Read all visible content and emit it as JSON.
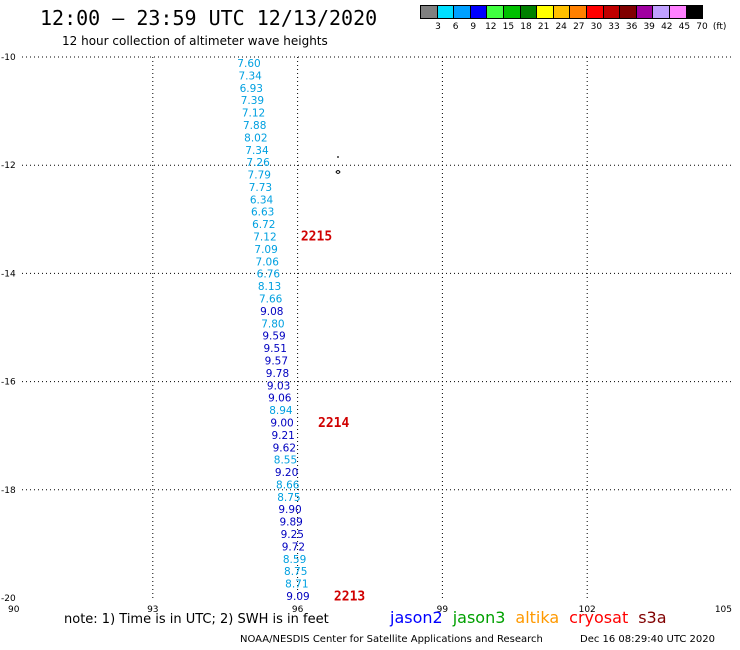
{
  "title": "12:00 — 23:59 UTC 12/13/2020",
  "subtitle": "12 hour collection of altimeter wave heights",
  "legend": {
    "labels": [
      "3",
      "6",
      "9",
      "12",
      "15",
      "18",
      "21",
      "24",
      "27",
      "30",
      "33",
      "36",
      "39",
      "42",
      "45",
      "70",
      "(ft)"
    ],
    "colors": [
      "#808080",
      "#00e0ff",
      "#00a0ff",
      "#0000ff",
      "#40ff40",
      "#00c000",
      "#008000",
      "#ffff00",
      "#ffc000",
      "#ff8000",
      "#ff0000",
      "#c00000",
      "#800000",
      "#a000a0",
      "#c0a0ff",
      "#ff80ff",
      "#000000"
    ]
  },
  "map": {
    "lon_range": [
      90,
      105
    ],
    "lat_range": [
      -20,
      -10
    ],
    "lon_ticks": [
      "90",
      "93",
      "96",
      "99",
      "102",
      "105"
    ],
    "lat_ticks": [
      "-10",
      "-12",
      "-14",
      "-16",
      "-18",
      "-20"
    ],
    "grid": "dotted",
    "track": [
      {
        "value": "7.60",
        "color": "#00a0e0"
      },
      {
        "value": "7.34",
        "color": "#00a0e0"
      },
      {
        "value": "6.93",
        "color": "#00a0e0"
      },
      {
        "value": "7.39",
        "color": "#00a0e0"
      },
      {
        "value": "7.12",
        "color": "#00a0e0"
      },
      {
        "value": "7.88",
        "color": "#00a0e0"
      },
      {
        "value": "8.02",
        "color": "#00a0e0"
      },
      {
        "value": "7.34",
        "color": "#00a0e0"
      },
      {
        "value": "7.26",
        "color": "#00a0e0"
      },
      {
        "value": "7.79",
        "color": "#00a0e0"
      },
      {
        "value": "7.73",
        "color": "#00a0e0"
      },
      {
        "value": "6.34",
        "color": "#00a0e0"
      },
      {
        "value": "6.63",
        "color": "#00a0e0"
      },
      {
        "value": "6.72",
        "color": "#00a0e0"
      },
      {
        "value": "7.12",
        "color": "#00a0e0"
      },
      {
        "value": "7.09",
        "color": "#00a0e0"
      },
      {
        "value": "7.06",
        "color": "#00a0e0"
      },
      {
        "value": "6.76",
        "color": "#00a0e0"
      },
      {
        "value": "8.13",
        "color": "#00a0e0"
      },
      {
        "value": "7.66",
        "color": "#00a0e0"
      },
      {
        "value": "9.08",
        "color": "#0000c0"
      },
      {
        "value": "7.80",
        "color": "#00a0e0"
      },
      {
        "value": "9.59",
        "color": "#0000c0"
      },
      {
        "value": "9.51",
        "color": "#0000c0"
      },
      {
        "value": "9.57",
        "color": "#0000c0"
      },
      {
        "value": "9.78",
        "color": "#0000c0"
      },
      {
        "value": "9.03",
        "color": "#0000c0"
      },
      {
        "value": "9.06",
        "color": "#0000c0"
      },
      {
        "value": "8.94",
        "color": "#00a0e0"
      },
      {
        "value": "9.00",
        "color": "#0000c0"
      },
      {
        "value": "9.21",
        "color": "#0000c0"
      },
      {
        "value": "9.62",
        "color": "#0000c0"
      },
      {
        "value": "8.55",
        "color": "#00a0e0"
      },
      {
        "value": "9.20",
        "color": "#0000c0"
      },
      {
        "value": "8.66",
        "color": "#00a0e0"
      },
      {
        "value": "8.75",
        "color": "#00a0e0"
      },
      {
        "value": "9.90",
        "color": "#0000c0"
      },
      {
        "value": "9.89",
        "color": "#0000c0"
      },
      {
        "value": "9.25",
        "color": "#0000c0"
      },
      {
        "value": "9.72",
        "color": "#0000c0"
      },
      {
        "value": "8.59",
        "color": "#00a0e0"
      },
      {
        "value": "8.75",
        "color": "#00a0e0"
      },
      {
        "value": "8.71",
        "color": "#00a0e0"
      },
      {
        "value": "9.09",
        "color": "#0000c0"
      }
    ],
    "time_labels": [
      {
        "text": "2215",
        "lat": -13.3
      },
      {
        "text": "2214",
        "lat": -16.75
      },
      {
        "text": "2213",
        "lat": -19.95
      }
    ]
  },
  "footer": {
    "note": "note:  1) Time is in UTC;  2) SWH is in feet",
    "missions": [
      {
        "name": "jason2",
        "color": "#0000ff"
      },
      {
        "name": "jason3",
        "color": "#00a000"
      },
      {
        "name": "altika",
        "color": "#ff9900"
      },
      {
        "name": "cryosat",
        "color": "#ff0000"
      },
      {
        "name": "s3a",
        "color": "#800000"
      }
    ],
    "credit": "NOAA/NESDIS Center for Satellite Applications and Research",
    "timestamp": "Dec 16 08:29:40 UTC 2020"
  }
}
